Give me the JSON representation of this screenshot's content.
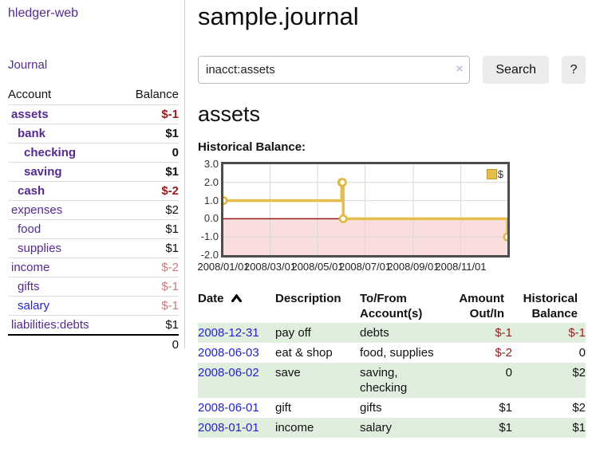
{
  "app": {
    "title": "hledger-web"
  },
  "sidebar": {
    "journal_link": "Journal",
    "accounts": {
      "header_account": "Account",
      "header_balance": "Balance",
      "rows": [
        {
          "name": "assets",
          "balance": "$-1",
          "depth": 1,
          "in_query": true
        },
        {
          "name": "bank",
          "balance": "$1",
          "depth": 2,
          "in_query": true
        },
        {
          "name": "checking",
          "balance": "0",
          "depth": 3,
          "in_query": true
        },
        {
          "name": "saving",
          "balance": "$1",
          "depth": 3,
          "in_query": true
        },
        {
          "name": "cash",
          "balance": "$-2",
          "depth": 2,
          "in_query": true
        },
        {
          "name": "expenses",
          "balance": "$2",
          "depth": 1,
          "in_query": false
        },
        {
          "name": "food",
          "balance": "$1",
          "depth": 2,
          "in_query": false
        },
        {
          "name": "supplies",
          "balance": "$1",
          "depth": 2,
          "in_query": false
        },
        {
          "name": "income",
          "balance": "$-2",
          "depth": 1,
          "in_query": false
        },
        {
          "name": "gifts",
          "balance": "$-1",
          "depth": 2,
          "in_query": false
        },
        {
          "name": "salary",
          "balance": "$-1",
          "depth": 2,
          "in_query": false,
          "visited": false
        },
        {
          "name": "liabilities:debts",
          "balance": "$1",
          "depth": 1,
          "in_query": false
        }
      ],
      "total": "0"
    }
  },
  "main": {
    "title": "sample.journal",
    "search": {
      "value": "inacct:assets",
      "clear_icon": "×",
      "button_label": "Search",
      "help_label": "?"
    },
    "account_heading": "assets"
  },
  "chart_data": {
    "type": "line",
    "style": "step-with-markers",
    "title": "Historical Balance:",
    "series": [
      {
        "name": "$",
        "points": [
          [
            "2008-01-01",
            1
          ],
          [
            "2008-06-01",
            2
          ],
          [
            "2008-06-02",
            2
          ],
          [
            "2008-06-03",
            0
          ],
          [
            "2008-12-31",
            -1
          ]
        ]
      }
    ],
    "xrange": [
      "2008-01-01",
      "2008-12-31"
    ],
    "ylim": [
      -2,
      3
    ],
    "yticks": [
      "3.0",
      "2.0",
      "1.0",
      "0.0",
      "-1.0",
      "-2.0"
    ],
    "xticks": [
      "2008/01/01",
      "2008/03/01",
      "2008/05/01",
      "2008/07/01",
      "2008/09/01",
      "2008/11/01"
    ],
    "grid": true,
    "legend": {
      "label": "$",
      "position": "top-right"
    }
  },
  "register": {
    "headers": [
      {
        "lines": [
          "Date"
        ],
        "sort": "asc"
      },
      {
        "lines": [
          "Description"
        ]
      },
      {
        "lines": [
          "To/From",
          "Account(s)"
        ]
      },
      {
        "lines": [
          "Amount",
          "Out/In"
        ],
        "align": "right"
      },
      {
        "lines": [
          "Historical",
          "Balance"
        ],
        "align": "right"
      }
    ],
    "rows": [
      {
        "date": "2008-12-31",
        "description": "pay off",
        "accounts": "debts",
        "amount": "$-1",
        "balance": "$-1"
      },
      {
        "date": "2008-06-03",
        "description": "eat & shop",
        "accounts": "food, supplies",
        "amount": "$-2",
        "balance": "0"
      },
      {
        "date": "2008-06-02",
        "description": "save",
        "accounts": "saving, checking",
        "amount": "0",
        "balance": "$2"
      },
      {
        "date": "2008-06-01",
        "description": "gift",
        "accounts": "gifts",
        "amount": "$1",
        "balance": "$2"
      },
      {
        "date": "2008-01-01",
        "description": "income",
        "accounts": "salary",
        "amount": "$1",
        "balance": "$1"
      }
    ]
  },
  "colors": {
    "link_purple": "#552a90",
    "link_blue": "#2222d0",
    "negative_strong": "#961c1c",
    "negative_light": "#c27b7e",
    "row_stripe_green": "#e0eedd",
    "chart_line_yellow": "#e5bf4d",
    "chart_marker_ring": "#e0b840",
    "chart_negative_region": "#fadede",
    "chart_zero_line": "#8c1a1a",
    "chart_grid": "#d9d9d9",
    "chart_border": "#4d4d4d"
  }
}
